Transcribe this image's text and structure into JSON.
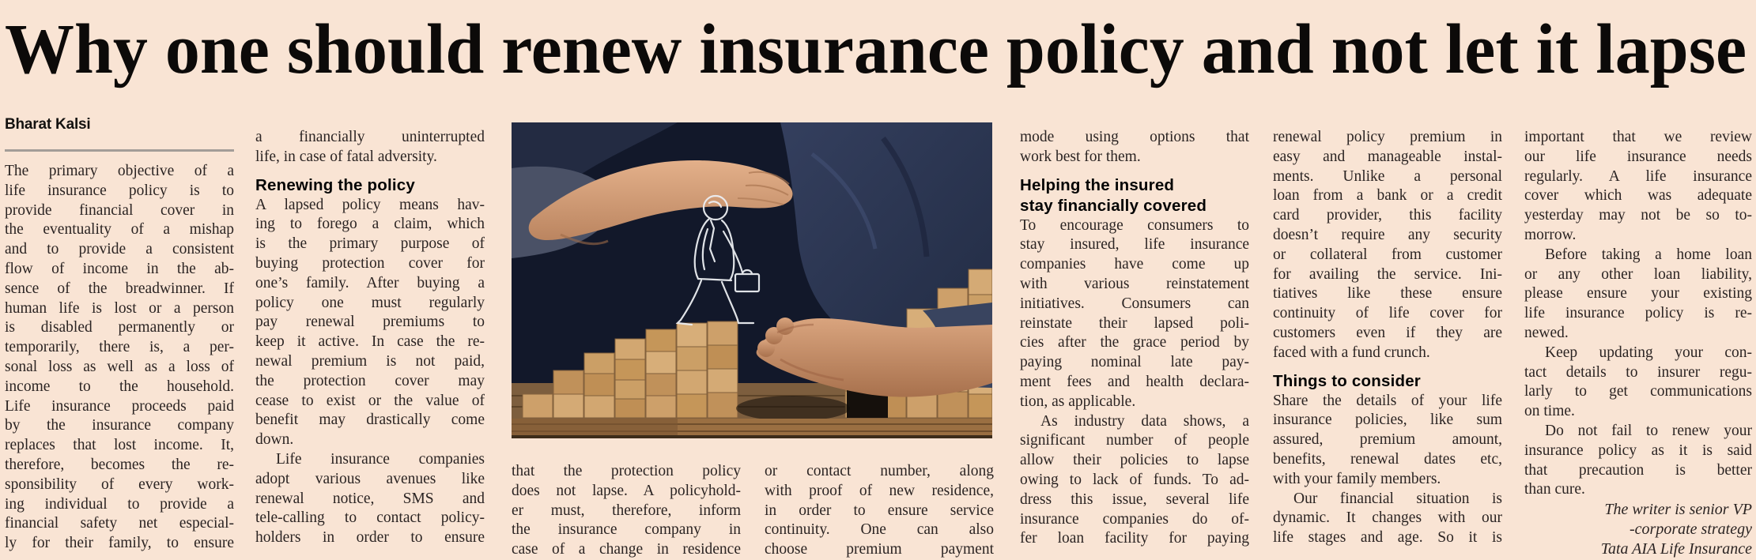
{
  "page": {
    "background_color": "#f9e4d4",
    "text_color": "#2b2423"
  },
  "headline": "Why one should renew insurance policy and not let it lapse",
  "byline": "Bharat Kalsi",
  "photo": {
    "description": "Hand sheltering a sketched businessman walking up wooden block steps while another hand bridges a gap in the blocks",
    "colors": {
      "background_navy": "#12182a",
      "skin": "#d9a47e",
      "wood_block": "#cda06a",
      "table_wood": "#9a6f42",
      "sketch_line": "#eceef2"
    }
  },
  "columns": [
    {
      "name": "column-1",
      "lines": [
        {
          "t": "The primary objective of a",
          "s": "j"
        },
        {
          "t": "life insurance policy is to",
          "s": "j"
        },
        {
          "t": "provide financial cover in",
          "s": "j"
        },
        {
          "t": "the eventuality of a mishap",
          "s": "j"
        },
        {
          "t": "and to provide a consistent",
          "s": "j"
        },
        {
          "t": "flow of income in the ab-",
          "s": "j"
        },
        {
          "t": "sence of the breadwinner. If",
          "s": "j"
        },
        {
          "t": "human life is lost or a person",
          "s": "j"
        },
        {
          "t": "is disabled permanently or",
          "s": "j"
        },
        {
          "t": "temporarily, there is, a per-",
          "s": "j"
        },
        {
          "t": "sonal loss as well as a loss of",
          "s": "j"
        },
        {
          "t": "income to the household.",
          "s": "j"
        },
        {
          "t": "Life insurance proceeds paid",
          "s": "j"
        },
        {
          "t": "by the insurance company",
          "s": "j"
        },
        {
          "t": "replaces that lost income. It,",
          "s": "j"
        },
        {
          "t": "therefore, becomes the re-",
          "s": "j"
        },
        {
          "t": "sponsibility of every work-",
          "s": "j"
        },
        {
          "t": "ing individual to provide a",
          "s": "j"
        },
        {
          "t": "financial safety net especial-",
          "s": "j"
        },
        {
          "t": "ly for their family, to ensure",
          "s": "j"
        }
      ]
    },
    {
      "name": "column-2",
      "lines": [
        {
          "t": "a financially uninterrupted",
          "s": "j"
        },
        {
          "t": "life, in case of fatal adversity.",
          "s": "e"
        },
        {
          "t": "",
          "s": "g"
        },
        {
          "t": "Renewing the policy",
          "s": "h"
        },
        {
          "t": "A lapsed policy means hav-",
          "s": "j"
        },
        {
          "t": "ing to forego a claim, which",
          "s": "j"
        },
        {
          "t": "is the primary purpose of",
          "s": "j"
        },
        {
          "t": "buying protection cover for",
          "s": "j"
        },
        {
          "t": "one’s family. After buying a",
          "s": "j"
        },
        {
          "t": "policy one must regularly",
          "s": "j"
        },
        {
          "t": "pay renewal premiums to",
          "s": "j"
        },
        {
          "t": "keep it active. In case the re-",
          "s": "j"
        },
        {
          "t": "newal premium is not paid,",
          "s": "j"
        },
        {
          "t": "the protection cover may",
          "s": "j"
        },
        {
          "t": "cease to exist or the value of",
          "s": "j"
        },
        {
          "t": "benefit may drastically come",
          "s": "j"
        },
        {
          "t": "down.",
          "s": "e"
        },
        {
          "t": "Life insurance companies",
          "s": "i"
        },
        {
          "t": "adopt various avenues like",
          "s": "j"
        },
        {
          "t": "renewal notice, SMS and",
          "s": "j"
        },
        {
          "t": "tele-calling to contact policy-",
          "s": "j"
        },
        {
          "t": "holders in order to ensure",
          "s": "j"
        }
      ]
    },
    {
      "name": "column-3",
      "lines": [
        {
          "t": "that the protection policy",
          "s": "j"
        },
        {
          "t": "does not lapse. A policyhold-",
          "s": "j"
        },
        {
          "t": "er must, therefore, inform",
          "s": "j"
        },
        {
          "t": "the insurance company in",
          "s": "j"
        },
        {
          "t": "case of a change in residence",
          "s": "j"
        }
      ]
    },
    {
      "name": "column-4",
      "lines": [
        {
          "t": "or contact number, along",
          "s": "j"
        },
        {
          "t": "with proof of new residence,",
          "s": "j"
        },
        {
          "t": "in order to ensure service",
          "s": "j"
        },
        {
          "t": "continuity. One can also",
          "s": "j"
        },
        {
          "t": "choose premium payment",
          "s": "j"
        }
      ]
    },
    {
      "name": "column-5",
      "lines": [
        {
          "t": "mode using options that",
          "s": "j"
        },
        {
          "t": "work best for them.",
          "s": "e"
        },
        {
          "t": "",
          "s": "g"
        },
        {
          "t": "Helping the insured",
          "s": "h"
        },
        {
          "t": "stay financially covered",
          "s": "h"
        },
        {
          "t": "To encourage consumers to",
          "s": "j"
        },
        {
          "t": "stay insured, life insurance",
          "s": "j"
        },
        {
          "t": "companies have come up",
          "s": "j"
        },
        {
          "t": "with various reinstatement",
          "s": "j"
        },
        {
          "t": "initiatives. Consumers can",
          "s": "j"
        },
        {
          "t": "reinstate their lapsed poli-",
          "s": "j"
        },
        {
          "t": "cies after the grace period by",
          "s": "j"
        },
        {
          "t": "paying nominal late pay-",
          "s": "j"
        },
        {
          "t": "ment fees and health declara-",
          "s": "j"
        },
        {
          "t": "tion, as applicable.",
          "s": "e"
        },
        {
          "t": "As industry data shows, a",
          "s": "i"
        },
        {
          "t": "significant number of people",
          "s": "j"
        },
        {
          "t": "allow their policies to lapse",
          "s": "j"
        },
        {
          "t": "owing to lack of funds. To ad-",
          "s": "j"
        },
        {
          "t": "dress this issue, several life",
          "s": "j"
        },
        {
          "t": "insurance companies do of-",
          "s": "j"
        },
        {
          "t": "fer loan facility for paying",
          "s": "j"
        }
      ]
    },
    {
      "name": "column-6",
      "lines": [
        {
          "t": "renewal policy premium in",
          "s": "j"
        },
        {
          "t": "easy and manageable instal-",
          "s": "j"
        },
        {
          "t": "ments. Unlike a personal",
          "s": "j"
        },
        {
          "t": "loan from a bank or a credit",
          "s": "j"
        },
        {
          "t": "card provider, this facility",
          "s": "j"
        },
        {
          "t": "doesn’t require any security",
          "s": "j"
        },
        {
          "t": "or collateral from customer",
          "s": "j"
        },
        {
          "t": "for availing the service. Ini-",
          "s": "j"
        },
        {
          "t": "tiatives like these ensure",
          "s": "j"
        },
        {
          "t": "continuity of life cover for",
          "s": "j"
        },
        {
          "t": "customers even if they are",
          "s": "j"
        },
        {
          "t": "faced with a fund crunch.",
          "s": "e"
        },
        {
          "t": "",
          "s": "g"
        },
        {
          "t": "Things to consider",
          "s": "h"
        },
        {
          "t": "Share the details of your life",
          "s": "j"
        },
        {
          "t": "insurance policies, like sum",
          "s": "j"
        },
        {
          "t": "assured, premium amount,",
          "s": "j"
        },
        {
          "t": "benefits, renewal dates etc,",
          "s": "j"
        },
        {
          "t": "with your family members.",
          "s": "e"
        },
        {
          "t": "Our financial situation is",
          "s": "i"
        },
        {
          "t": "dynamic. It changes with our",
          "s": "j"
        },
        {
          "t": "life stages and age. So it is",
          "s": "j"
        }
      ]
    },
    {
      "name": "column-7",
      "lines": [
        {
          "t": "important that we review",
          "s": "j"
        },
        {
          "t": "our life insurance needs",
          "s": "j"
        },
        {
          "t": "regularly. A life insurance",
          "s": "j"
        },
        {
          "t": "cover which was adequate",
          "s": "j"
        },
        {
          "t": "yesterday may not be so to-",
          "s": "j"
        },
        {
          "t": "morrow.",
          "s": "e"
        },
        {
          "t": "Before taking a home loan",
          "s": "i"
        },
        {
          "t": "or any other loan liability,",
          "s": "j"
        },
        {
          "t": "please ensure your existing",
          "s": "j"
        },
        {
          "t": "life insurance policy is re-",
          "s": "j"
        },
        {
          "t": "newed.",
          "s": "e"
        },
        {
          "t": "Keep updating your con-",
          "s": "i"
        },
        {
          "t": "tact details to insurer regu-",
          "s": "j"
        },
        {
          "t": "larly to get communications",
          "s": "j"
        },
        {
          "t": "on time.",
          "s": "e"
        },
        {
          "t": "Do not fail to renew your",
          "s": "i"
        },
        {
          "t": "insurance policy as it is said",
          "s": "j"
        },
        {
          "t": "that precaution is better",
          "s": "j"
        },
        {
          "t": "than cure.",
          "s": "e"
        },
        {
          "t": "The writer is senior VP",
          "s": "c"
        },
        {
          "t": "-corporate strategy",
          "s": "c"
        },
        {
          "t": "Tata AIA Life Insurance",
          "s": "c"
        }
      ]
    }
  ]
}
